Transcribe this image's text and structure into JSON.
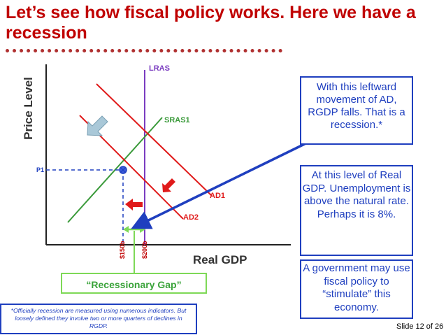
{
  "title": "Let’s see how fiscal policy works.  Here we have a recession",
  "graph": {
    "y_axis_label": "Price Level",
    "x_axis_label": "Real GDP",
    "curves": {
      "lras": "LRAS",
      "sras": "SRAS1",
      "ad1": "AD1",
      "ad2": "AD2"
    },
    "price_label": "P1",
    "x_tick_1": "$150b",
    "x_tick_2": "$200b",
    "gap_label": "“Recessionary Gap”"
  },
  "callouts": {
    "leftward_movement": "With this leftward movement of AD, RGDP falls.  That is a recession.*",
    "unemployment": "At this level of Real GDP.  Unemployment is above the natural rate.  Perhaps it is 8%.",
    "government": "A government may use fiscal policy to “stimulate” this economy."
  },
  "footnote": "*Officially recession are measured using numerous indicators.  But loosely defined they involve two or more quarters of declines in RGDP.",
  "slide_number": "Slide 12 of 26",
  "colors": {
    "title": "#c00000",
    "ad_curves": "#e01a1a",
    "sras": "#3a9a3a",
    "lras": "#7a3cc0",
    "callout_blue": "#1f3fbf",
    "gap_green": "#7ed957"
  }
}
